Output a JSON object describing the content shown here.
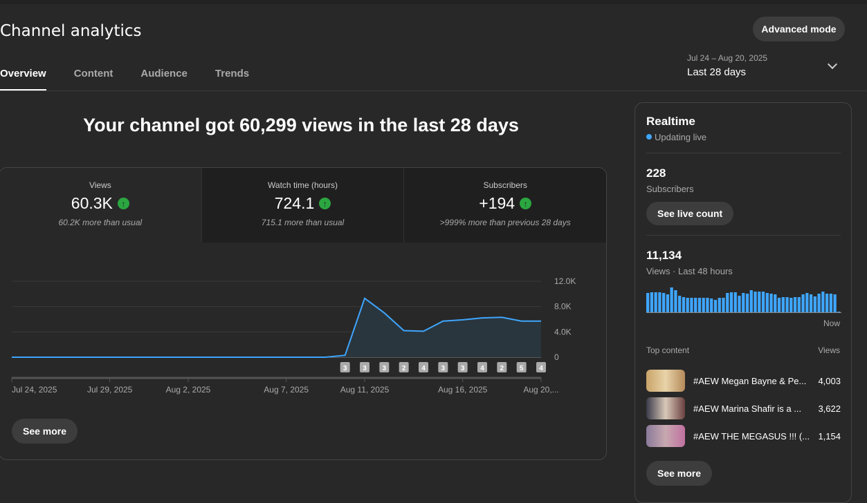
{
  "header": {
    "title": "Channel analytics",
    "advanced_mode": "Advanced mode",
    "date_range": "Jul 24 – Aug 20, 2025",
    "period": "Last 28 days"
  },
  "tabs": [
    {
      "label": "Overview"
    },
    {
      "label": "Content"
    },
    {
      "label": "Audience"
    },
    {
      "label": "Trends"
    }
  ],
  "headline": "Your channel got 60,299 views in the last 28 days",
  "metrics": [
    {
      "label": "Views",
      "value": "60.3K",
      "note": "60.2K more than usual"
    },
    {
      "label": "Watch time (hours)",
      "value": "724.1",
      "note": "715.1 more than usual"
    },
    {
      "label": "Subscribers",
      "value": "+194",
      "note": ">999% more than previous 28 days"
    }
  ],
  "see_more": "See more",
  "chart_data": {
    "type": "area",
    "series": [
      {
        "name": "Views",
        "values": [
          0,
          0,
          0,
          0,
          0,
          0,
          0,
          0,
          0,
          0,
          0,
          0,
          0,
          0,
          0,
          0,
          0,
          300,
          9300,
          7000,
          4200,
          4100,
          5700,
          5900,
          6200,
          6300,
          5700,
          5700
        ]
      }
    ],
    "ylim": [
      0,
      12000
    ],
    "yticks": [
      "12.0K",
      "8.0K",
      "4.0K",
      "0"
    ],
    "yvals": [
      12000,
      8000,
      4000,
      0
    ],
    "xticks": [
      {
        "label": "Jul 24, 2025",
        "day": 0
      },
      {
        "label": "Jul 29, 2025",
        "day": 5
      },
      {
        "label": "Aug 2, 2025",
        "day": 9
      },
      {
        "label": "Aug 7, 2025",
        "day": 14
      },
      {
        "label": "Aug 11, 2025",
        "day": 18
      },
      {
        "label": "Aug 16, 2025",
        "day": 23
      },
      {
        "label": "Aug 20,...",
        "day": 27
      }
    ],
    "badges": {
      "start_day": 17,
      "values": [
        "3",
        "3",
        "3",
        "2",
        "4",
        "3",
        "3",
        "4",
        "2",
        "5",
        "4"
      ]
    },
    "color": "#3ea6ff"
  },
  "realtime": {
    "title": "Realtime",
    "status": "Updating live",
    "subscribers": "228",
    "subscribers_label": "Subscribers",
    "see_live": "See live count",
    "views": "11,134",
    "views_label": "Views · Last 48 hours",
    "now": "Now",
    "bars": [
      28,
      29,
      29,
      29,
      28,
      26,
      36,
      32,
      24,
      22,
      21,
      21,
      21,
      21,
      21,
      21,
      20,
      18,
      21,
      21,
      28,
      29,
      29,
      24,
      28,
      27,
      32,
      30,
      30,
      30,
      28,
      27,
      26,
      21,
      22,
      22,
      21,
      22,
      22,
      26,
      28,
      26,
      23,
      27,
      30,
      27,
      27,
      26,
      1
    ],
    "top_content_label": "Top content",
    "views_col": "Views",
    "top": [
      {
        "title": "#AEW Megan Bayne & Pe...",
        "views": "4,003"
      },
      {
        "title": "#AEW Marina Shafir is a ...",
        "views": "3,622"
      },
      {
        "title": "#AEW THE MEGASUS !!! (...",
        "views": "1,154"
      }
    ],
    "see_more": "See more"
  }
}
